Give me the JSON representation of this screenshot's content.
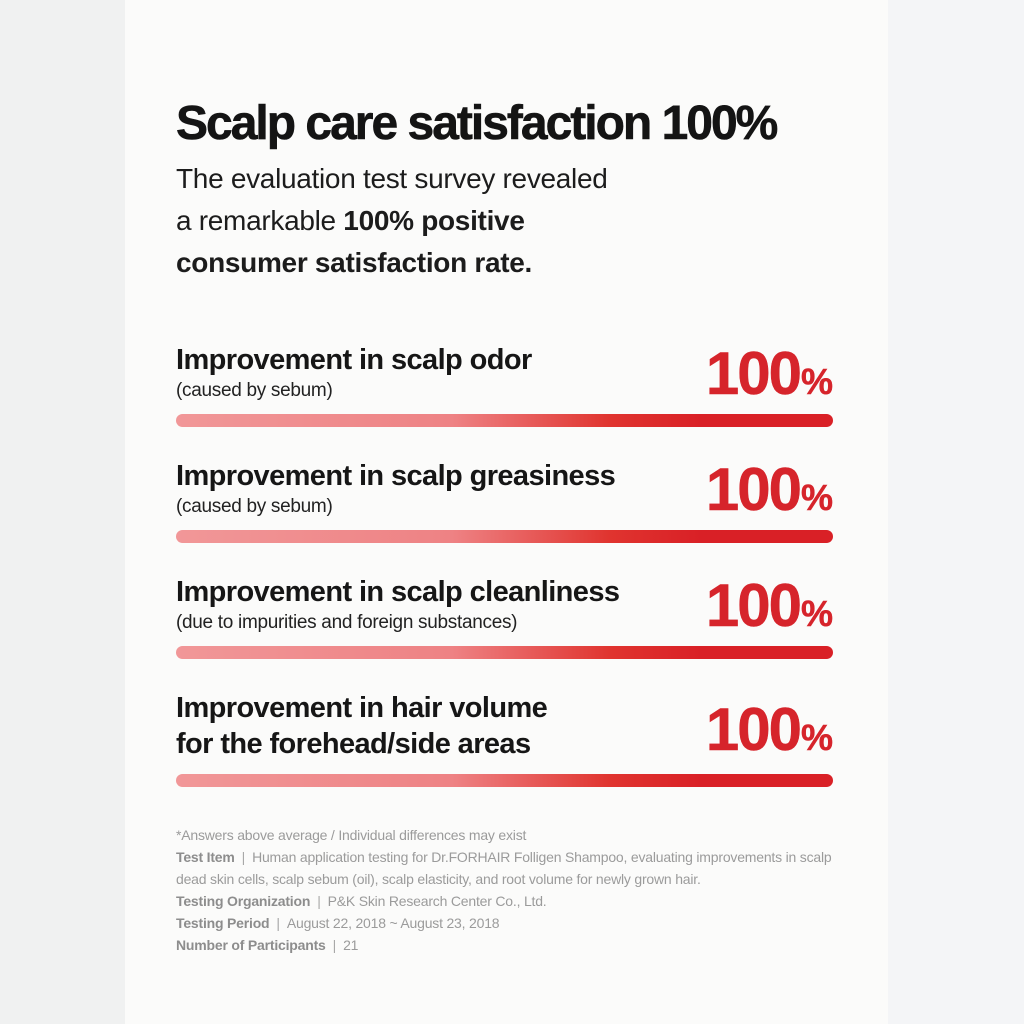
{
  "header": {
    "title": "Scalp care satisfaction 100%",
    "subtitle": {
      "line1": "The evaluation test survey revealed",
      "line2_regular": "a remarkable ",
      "line2_bold": "100% positive",
      "line3_bold": "consumer satisfaction rate."
    }
  },
  "chart_data": {
    "type": "bar",
    "title": "Scalp care satisfaction 100%",
    "categories": [
      "Improvement in scalp odor (caused by sebum)",
      "Improvement in scalp greasiness (caused by sebum)",
      "Improvement in scalp cleanliness (due to impurities and foreign substances)",
      "Improvement in hair volume for the forehead/side areas"
    ],
    "values": [
      100,
      100,
      100,
      100
    ],
    "unit": "%",
    "xlim": [
      0,
      100
    ],
    "legend": "none",
    "bar_style": "full-width rounded pill with light-red to red gradient"
  },
  "metrics": [
    {
      "label": "Improvement in scalp odor",
      "sublabel": "(caused by sebum)",
      "value": "100",
      "unit": "%"
    },
    {
      "label": "Improvement in scalp greasiness",
      "sublabel": "(caused by sebum)",
      "value": "100",
      "unit": "%"
    },
    {
      "label": "Improvement in scalp cleanliness",
      "sublabel": "(due to impurities and foreign substances)",
      "value": "100",
      "unit": "%"
    },
    {
      "label": "Improvement in hair volume\nfor the forehead/side areas",
      "value": "100",
      "unit": "%"
    }
  ],
  "footnotes": {
    "disclaimer": "*Answers above average / Individual differences may exist",
    "items": [
      {
        "label": "Test Item",
        "sep": "|",
        "text": "Human application testing for Dr.FORHAIR Folligen Shampoo, evaluating improvements in scalp dead skin cells, scalp sebum (oil), scalp elasticity, and root volume for newly grown hair."
      },
      {
        "label": "Testing Organization",
        "sep": "|",
        "text": "P&K Skin Research Center Co., Ltd."
      },
      {
        "label": "Testing Period",
        "sep": "|",
        "text": "August 22, 2018 ~ August 23, 2018"
      },
      {
        "label": "Number of Participants",
        "sep": "|",
        "text": "21"
      }
    ]
  },
  "colors": {
    "accent_red": "#d6242b",
    "bar_gradient_start": "#f19798",
    "bar_gradient_end": "#d92026",
    "text_dark": "#141414",
    "footnote_gray": "#9b9b9b",
    "card_background": "#fbfbfa"
  }
}
